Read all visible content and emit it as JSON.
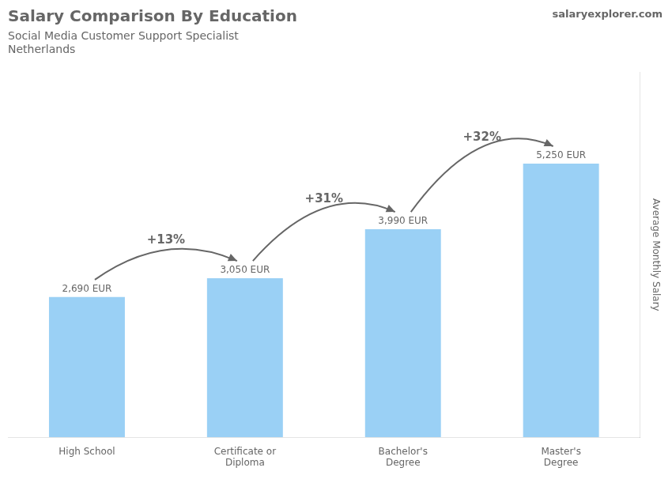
{
  "chart_data": {
    "type": "bar",
    "title": "Salary Comparison By Education",
    "subtitle": [
      "Social Media Customer Support Specialist",
      "Netherlands"
    ],
    "watermark": "salaryexplorer.com",
    "categories": [
      "High School",
      "Certificate or\nDiploma",
      "Bachelor's\nDegree",
      "Master's\nDegree"
    ],
    "values": [
      2690,
      3050,
      3990,
      5250
    ],
    "value_labels": [
      "2,690 EUR",
      "3,050 EUR",
      "3,990 EUR",
      "5,250 EUR"
    ],
    "data_labels": true,
    "ylabel": "Average Monthly Salary",
    "ylim": [
      0,
      7000
    ],
    "grid": false,
    "tick_labels": "x",
    "annotations": [
      {
        "text": "+13%",
        "from": 0,
        "to": 1
      },
      {
        "text": "+31%",
        "from": 1,
        "to": 2
      },
      {
        "text": "+32%",
        "from": 2,
        "to": 3
      }
    ]
  }
}
